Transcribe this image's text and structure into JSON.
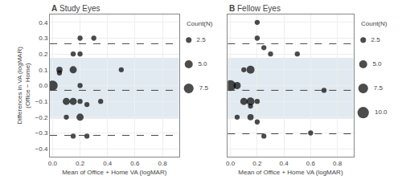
{
  "chart_data": [
    {
      "type": "scatter",
      "title": "A Study Eyes",
      "x_label": "Mean of Office + Home VA (logMAR)",
      "y_label": "Differences in VA (logMAR)\n(Office − Home)",
      "xlim": [
        -0.02,
        0.92
      ],
      "ylim": [
        -0.45,
        0.45
      ],
      "xticks": [
        {
          "value": 0.0,
          "label": "0.0"
        },
        0.2,
        0.4,
        0.6,
        0.8
      ],
      "yticks": [
        -0.4,
        -0.3,
        -0.2,
        -0.1,
        {
          "value": 0.0,
          "label": "0.0"
        },
        0.1,
        0.2,
        0.3,
        0.4
      ],
      "grid": true,
      "color": "black",
      "x": [
        0.0,
        0.05,
        0.1,
        0.1,
        0.05,
        0.15,
        0.15,
        0.15,
        0.2,
        0.2,
        0.2,
        0.2,
        0.2,
        0.25,
        0.3,
        0.35,
        0.5,
        0.15,
        0.25
      ],
      "y": [
        0.0,
        0.1,
        -0.1,
        -0.2,
        0.08,
        0.1,
        -0.1,
        0.2,
        0.3,
        0.2,
        -0.1,
        -0.2,
        0.0,
        -0.12,
        0.3,
        -0.1,
        0.1,
        -0.32,
        -0.32
      ],
      "size": [
        8,
        3,
        4,
        2,
        2,
        4,
        4,
        2,
        2,
        2,
        2,
        4,
        2,
        2,
        2,
        2,
        2,
        2,
        2
      ],
      "reference_lines": [
        {
          "y": -0.03,
          "color": "#444444",
          "line_style": "dashed"
        },
        {
          "y": 0.265,
          "color": "#444444",
          "line_style": "dashed"
        },
        {
          "y": -0.315,
          "color": "#444444",
          "line_style": "dashed"
        }
      ],
      "band": {
        "from": -0.21,
        "to": 0.175,
        "color": "#d0dfe8"
      },
      "size_key": {
        "title": "Count(N)",
        "sizes": [
          2.5,
          {
            "value": 5.0,
            "label": "5.0"
          },
          7.5
        ]
      }
    },
    {
      "type": "scatter",
      "title": "B Fellow Eyes",
      "x_label": "Mean of Office + Home VA (logMAR)",
      "tick_labels": "x",
      "xlim": [
        -0.02,
        0.92
      ],
      "ylim": [
        -0.45,
        0.45
      ],
      "xticks": [
        {
          "value": 0.0,
          "label": "0.0"
        },
        0.2,
        0.4,
        0.6,
        0.8
      ],
      "yticks": [
        -0.4,
        -0.3,
        -0.2,
        -0.1,
        {
          "value": 0.0,
          "label": "0.0"
        },
        0.1,
        0.2,
        0.3,
        0.4
      ],
      "grid": true,
      "color": "black",
      "x": [
        0.0,
        0.05,
        0.1,
        0.1,
        0.05,
        0.15,
        0.15,
        0.15,
        0.15,
        0.2,
        0.2,
        0.2,
        0.25,
        0.3,
        0.5,
        0.6,
        0.25,
        0.2,
        0.7
      ],
      "y": [
        0.0,
        0.0,
        -0.1,
        0.1,
        -0.2,
        0.1,
        -0.1,
        -0.2,
        -0.13,
        0.4,
        0.3,
        -0.1,
        0.24,
        0.2,
        0.2,
        -0.3,
        -0.32,
        -0.23,
        -0.03
      ],
      "size": [
        9,
        4,
        4,
        2,
        2,
        5,
        5,
        3,
        2,
        2,
        2,
        2,
        2,
        2,
        2,
        2,
        2,
        2,
        2
      ],
      "reference_lines": [
        {
          "y": -0.03,
          "color": "#444444",
          "line_style": "dashed"
        },
        {
          "y": 0.265,
          "color": "#444444",
          "line_style": "dashed"
        },
        {
          "y": -0.305,
          "color": "#444444",
          "line_style": "dashed"
        }
      ],
      "band": {
        "from": -0.21,
        "to": 0.175,
        "color": "#d0dfe8"
      },
      "size_key": {
        "title": "Count(N)",
        "sizes": [
          2.5,
          {
            "value": 5.0,
            "label": "5.0"
          },
          7.5,
          {
            "value": 10.0,
            "label": "10.0"
          }
        ]
      }
    }
  ]
}
